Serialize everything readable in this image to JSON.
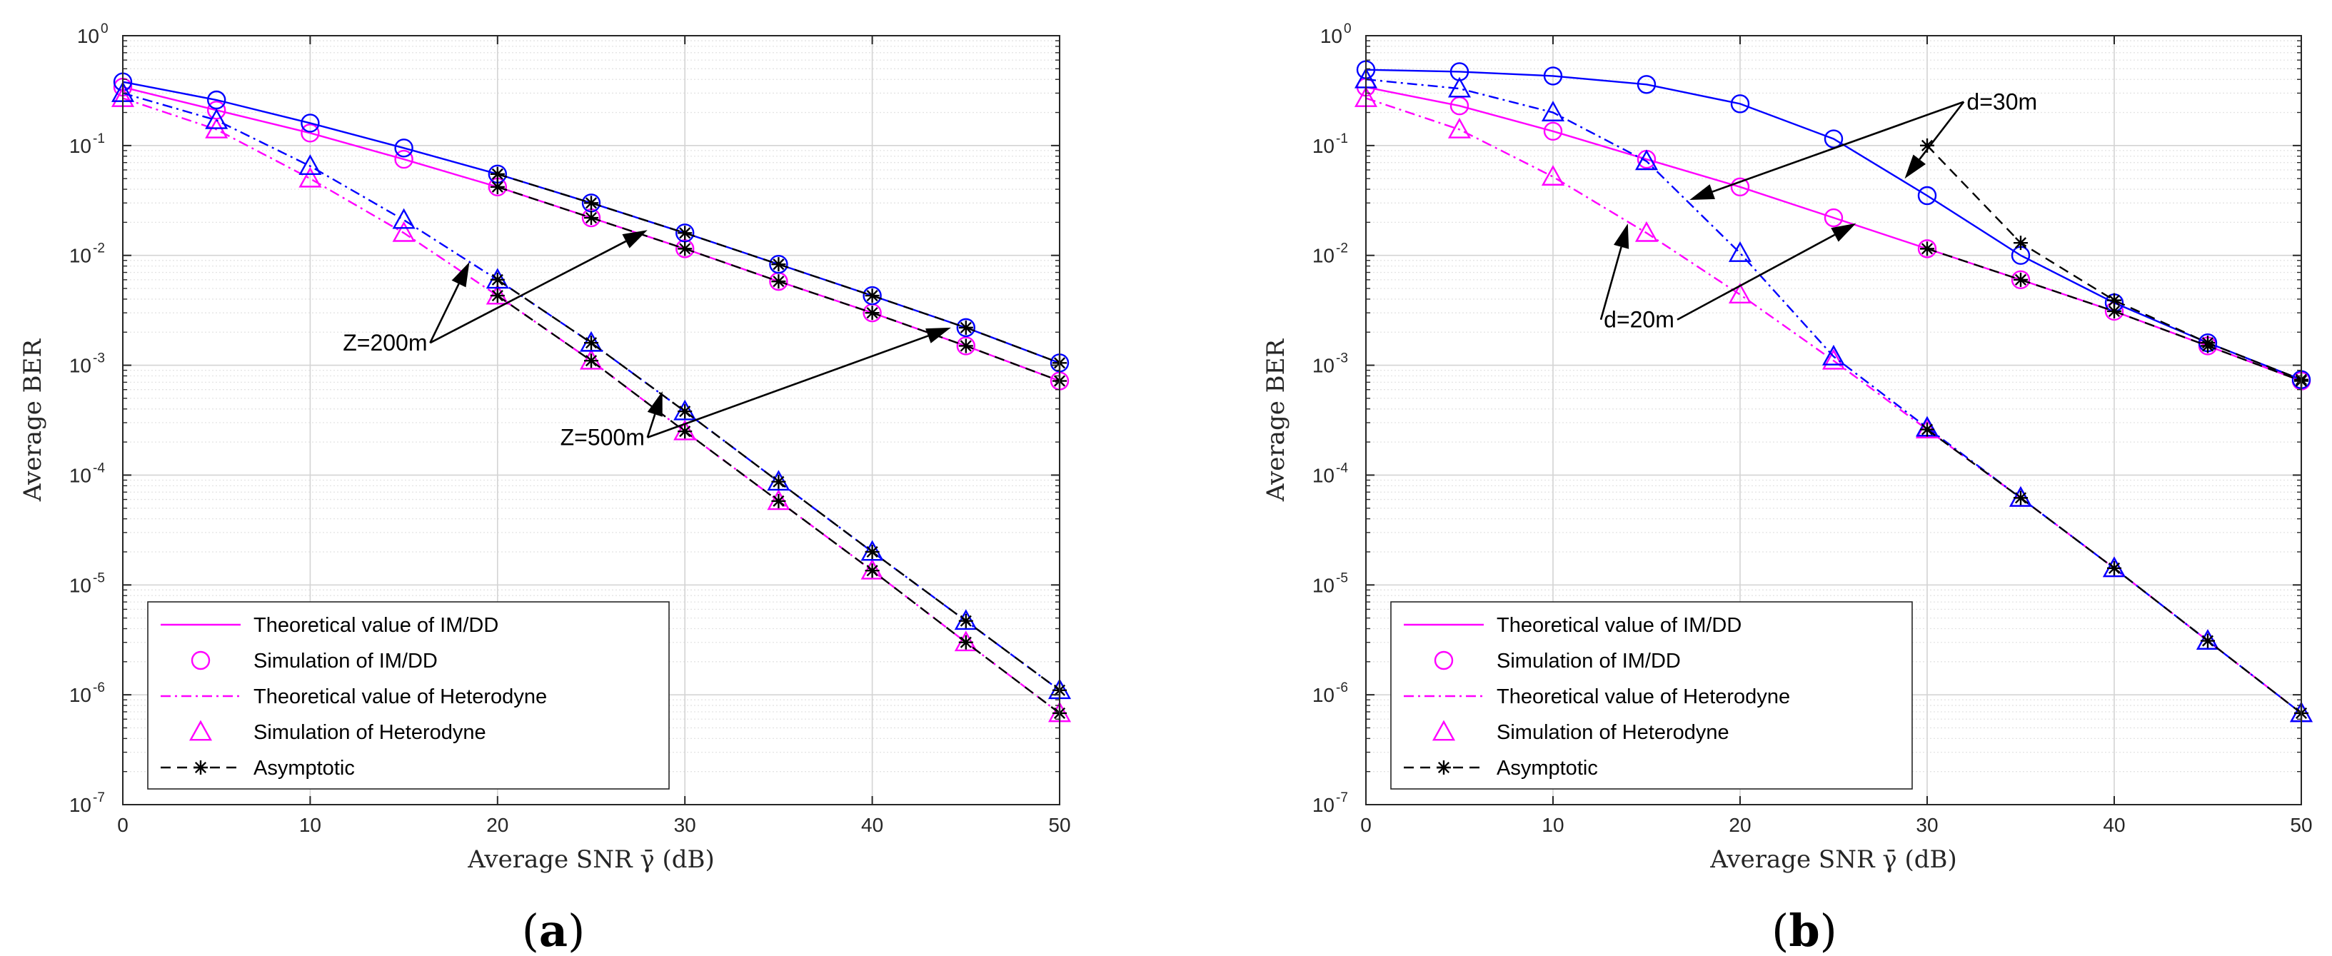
{
  "figure": {
    "captions": [
      {
        "open": "(",
        "letter": "a",
        "close": ")"
      },
      {
        "open": "(",
        "letter": "b",
        "close": ")"
      }
    ]
  },
  "chart_data": [
    {
      "type": "line",
      "id": "a",
      "title": "",
      "xlabel": "Average SNR γ̄ (dB)",
      "ylabel": "Average BER",
      "xlim": [
        0,
        50
      ],
      "ylim_log10": [
        -7,
        0
      ],
      "yscale": "log",
      "grid": true,
      "xticks": [
        0,
        10,
        20,
        30,
        40,
        50
      ],
      "yticks_base": "10",
      "yticks_exp": [
        "0",
        "-1",
        "-2",
        "-3",
        "-4",
        "-5",
        "-6",
        "-7"
      ],
      "legend": {
        "placement": "bottom-left",
        "entries": [
          {
            "label": "Theoretical value of IM/DD",
            "style": "solid",
            "marker": "none",
            "color": "#ff00ff"
          },
          {
            "label": "Simulation of IM/DD",
            "style": "none",
            "marker": "circle",
            "color": "#ff00ff"
          },
          {
            "label": "Theoretical value of Heterodyne",
            "style": "dashdot",
            "marker": "none",
            "color": "#ff00ff"
          },
          {
            "label": "Simulation of Heterodyne",
            "style": "none",
            "marker": "triangle",
            "color": "#ff00ff"
          },
          {
            "label": "Asymptotic",
            "style": "dashed",
            "marker": "star",
            "color": "#000000"
          }
        ]
      },
      "series": [
        {
          "name": "IM/DD theory Z=200m",
          "style": "solid",
          "color": "#ff00ff",
          "marker": "none",
          "x": [
            0,
            5,
            10,
            15,
            20,
            25,
            30,
            35,
            40,
            45,
            50
          ],
          "y": [
            0.34,
            0.21,
            0.13,
            0.075,
            0.042,
            0.022,
            0.0115,
            0.0058,
            0.003,
            0.0015,
            0.00072
          ]
        },
        {
          "name": "IM/DD simulation Z=200m",
          "style": "none",
          "color": "#ff00ff",
          "marker": "circle",
          "x": [
            0,
            5,
            10,
            15,
            20,
            25,
            30,
            35,
            40,
            45,
            50
          ],
          "y": [
            0.34,
            0.21,
            0.13,
            0.075,
            0.042,
            0.022,
            0.0115,
            0.0058,
            0.003,
            0.0015,
            0.00072
          ]
        },
        {
          "name": "IM/DD theory Z=500m",
          "style": "solid",
          "color": "#0000ff",
          "marker": "none",
          "x": [
            0,
            5,
            10,
            15,
            20,
            25,
            30,
            35,
            40,
            45,
            50
          ],
          "y": [
            0.38,
            0.26,
            0.16,
            0.095,
            0.055,
            0.03,
            0.016,
            0.0083,
            0.0043,
            0.0022,
            0.00105
          ]
        },
        {
          "name": "IM/DD simulation Z=500m",
          "style": "none",
          "color": "#0000ff",
          "marker": "circle",
          "x": [
            0,
            5,
            10,
            15,
            20,
            25,
            30,
            35,
            40,
            45,
            50
          ],
          "y": [
            0.38,
            0.26,
            0.16,
            0.095,
            0.055,
            0.03,
            0.016,
            0.0083,
            0.0043,
            0.0022,
            0.00105
          ]
        },
        {
          "name": "Heterodyne theory Z=200m",
          "style": "dashdot",
          "color": "#ff00ff",
          "marker": "none",
          "x": [
            0,
            5,
            10,
            15,
            20,
            25,
            30,
            35,
            40,
            45,
            50
          ],
          "y": [
            0.27,
            0.14,
            0.05,
            0.016,
            0.0043,
            0.0011,
            0.00025,
            5.8e-05,
            1.35e-05,
            3e-06,
            6.8e-07
          ]
        },
        {
          "name": "Heterodyne simulation Z=200m",
          "style": "none",
          "color": "#ff00ff",
          "marker": "triangle",
          "x": [
            0,
            5,
            10,
            15,
            20,
            25,
            30,
            35,
            40,
            45,
            50
          ],
          "y": [
            0.27,
            0.14,
            0.05,
            0.016,
            0.0043,
            0.0011,
            0.00025,
            5.8e-05,
            1.35e-05,
            3e-06,
            6.8e-07
          ]
        },
        {
          "name": "Heterodyne theory Z=500m",
          "style": "dashdot",
          "color": "#0000ff",
          "marker": "none",
          "x": [
            0,
            5,
            10,
            15,
            20,
            25,
            30,
            35,
            40,
            45,
            50
          ],
          "y": [
            0.3,
            0.17,
            0.065,
            0.021,
            0.006,
            0.0016,
            0.00038,
            8.7e-05,
            2e-05,
            4.7e-06,
            1.1e-06
          ]
        },
        {
          "name": "Heterodyne simulation Z=500m",
          "style": "none",
          "color": "#0000ff",
          "marker": "triangle",
          "x": [
            0,
            5,
            10,
            15,
            20,
            25,
            30,
            35,
            40,
            45,
            50
          ],
          "y": [
            0.3,
            0.17,
            0.065,
            0.021,
            0.006,
            0.0016,
            0.00038,
            8.7e-05,
            2e-05,
            4.7e-06,
            1.1e-06
          ]
        },
        {
          "name": "Asymptotic IM/DD Z=200m",
          "style": "dashed",
          "color": "#000000",
          "marker": "star",
          "x": [
            20,
            25,
            30,
            35,
            40,
            45,
            50
          ],
          "y": [
            0.042,
            0.022,
            0.0115,
            0.0058,
            0.003,
            0.0015,
            0.00072
          ]
        },
        {
          "name": "Asymptotic IM/DD Z=500m",
          "style": "dashed",
          "color": "#000000",
          "marker": "star",
          "x": [
            20,
            25,
            30,
            35,
            40,
            45,
            50
          ],
          "y": [
            0.055,
            0.03,
            0.016,
            0.0083,
            0.0043,
            0.0022,
            0.00105
          ]
        },
        {
          "name": "Asymptotic Heterodyne Z=200m",
          "style": "dashed",
          "color": "#000000",
          "marker": "star",
          "x": [
            20,
            25,
            30,
            35,
            40,
            45,
            50
          ],
          "y": [
            0.0043,
            0.0011,
            0.00025,
            5.8e-05,
            1.35e-05,
            3e-06,
            6.8e-07
          ]
        },
        {
          "name": "Asymptotic Heterodyne Z=500m",
          "style": "dashed",
          "color": "#000000",
          "marker": "star",
          "x": [
            20,
            25,
            30,
            35,
            40,
            45,
            50
          ],
          "y": [
            0.006,
            0.0016,
            0.00038,
            8.7e-05,
            2e-05,
            4.7e-06,
            1.1e-06
          ]
        }
      ],
      "annotations": [
        {
          "text": "Z=200m",
          "at": [
            14,
            0.0016
          ],
          "arrows_to": [
            [
              18.5,
              0.0087
            ],
            [
              28,
              0.017
            ]
          ]
        },
        {
          "text": "Z=500m",
          "at": [
            25.6,
            0.00022
          ],
          "arrows_to": [
            [
              28.8,
              0.00058
            ],
            [
              44.2,
              0.0022
            ]
          ]
        }
      ]
    },
    {
      "type": "line",
      "id": "b",
      "title": "",
      "xlabel": "Average SNR γ̄ (dB)",
      "ylabel": "Average BER",
      "xlim": [
        0,
        50
      ],
      "ylim_log10": [
        -7,
        0
      ],
      "yscale": "log",
      "grid": true,
      "xticks": [
        0,
        10,
        20,
        30,
        40,
        50
      ],
      "yticks_base": "10",
      "yticks_exp": [
        "0",
        "-1",
        "-2",
        "-3",
        "-4",
        "-5",
        "-6",
        "-7"
      ],
      "legend": {
        "placement": "bottom-left",
        "entries": [
          {
            "label": "Theoretical value of IM/DD",
            "style": "solid",
            "marker": "none",
            "color": "#ff00ff"
          },
          {
            "label": "Simulation of IM/DD",
            "style": "none",
            "marker": "circle",
            "color": "#ff00ff"
          },
          {
            "label": "Theoretical value of Heterodyne",
            "style": "dashdot",
            "marker": "none",
            "color": "#ff00ff"
          },
          {
            "label": "Simulation of Heterodyne",
            "style": "none",
            "marker": "triangle",
            "color": "#ff00ff"
          },
          {
            "label": "Asymptotic",
            "style": "dashed",
            "marker": "star",
            "color": "#000000"
          }
        ]
      },
      "series": [
        {
          "name": "IM/DD theory d=20m",
          "style": "solid",
          "color": "#ff00ff",
          "marker": "none",
          "x": [
            0,
            5,
            10,
            15,
            20,
            25,
            30,
            35,
            40,
            45,
            50
          ],
          "y": [
            0.34,
            0.23,
            0.135,
            0.075,
            0.042,
            0.022,
            0.0115,
            0.006,
            0.0031,
            0.0015,
            0.00072
          ]
        },
        {
          "name": "IM/DD simulation d=20m",
          "style": "none",
          "color": "#ff00ff",
          "marker": "circle",
          "x": [
            0,
            5,
            10,
            15,
            20,
            25,
            30,
            35,
            40,
            45,
            50
          ],
          "y": [
            0.34,
            0.23,
            0.135,
            0.075,
            0.042,
            0.022,
            0.0115,
            0.006,
            0.0031,
            0.0015,
            0.00072
          ]
        },
        {
          "name": "IM/DD theory d=30m",
          "style": "solid",
          "color": "#0000ff",
          "marker": "none",
          "x": [
            0,
            5,
            10,
            15,
            20,
            25,
            30,
            35,
            40,
            45,
            50
          ],
          "y": [
            0.49,
            0.47,
            0.43,
            0.36,
            0.24,
            0.115,
            0.035,
            0.01,
            0.0037,
            0.0016,
            0.00074
          ]
        },
        {
          "name": "IM/DD simulation d=30m",
          "style": "none",
          "color": "#0000ff",
          "marker": "circle",
          "x": [
            0,
            5,
            10,
            15,
            20,
            25,
            30,
            35,
            40,
            45,
            50
          ],
          "y": [
            0.49,
            0.47,
            0.43,
            0.36,
            0.24,
            0.115,
            0.035,
            0.01,
            0.0037,
            0.0016,
            0.00074
          ]
        },
        {
          "name": "Heterodyne theory d=20m",
          "style": "dashdot",
          "color": "#ff00ff",
          "marker": "none",
          "x": [
            0,
            5,
            10,
            15,
            20,
            25,
            30,
            35,
            40,
            45,
            50
          ],
          "y": [
            0.27,
            0.14,
            0.052,
            0.016,
            0.0044,
            0.0011,
            0.00026,
            6.2e-05,
            1.42e-05,
            3.1e-06,
            6.8e-07
          ]
        },
        {
          "name": "Heterodyne simulation d=20m",
          "style": "none",
          "color": "#ff00ff",
          "marker": "triangle",
          "x": [
            0,
            5,
            10,
            15,
            20,
            25,
            30,
            35,
            40,
            45,
            50
          ],
          "y": [
            0.27,
            0.14,
            0.052,
            0.016,
            0.0044,
            0.0011,
            0.00026,
            6.2e-05,
            1.42e-05,
            3.1e-06,
            6.8e-07
          ]
        },
        {
          "name": "Heterodyne theory d=30m",
          "style": "dashdot",
          "color": "#0000ff",
          "marker": "none",
          "x": [
            0,
            5,
            10,
            15,
            20,
            25,
            30,
            35,
            40,
            45,
            50
          ],
          "y": [
            0.4,
            0.33,
            0.2,
            0.072,
            0.0105,
            0.0012,
            0.00027,
            6.2e-05,
            1.42e-05,
            3.1e-06,
            6.8e-07
          ]
        },
        {
          "name": "Heterodyne simulation d=30m",
          "style": "none",
          "color": "#0000ff",
          "marker": "triangle",
          "x": [
            0,
            5,
            10,
            15,
            20,
            25,
            30,
            35,
            40,
            45,
            50
          ],
          "y": [
            0.4,
            0.33,
            0.2,
            0.072,
            0.0105,
            0.0012,
            0.00027,
            6.2e-05,
            1.42e-05,
            3.1e-06,
            6.8e-07
          ]
        },
        {
          "name": "Asymptotic IM/DD d=20m",
          "style": "dashed",
          "color": "#000000",
          "marker": "star",
          "x": [
            30,
            35,
            40,
            45,
            50
          ],
          "y": [
            0.0115,
            0.006,
            0.0031,
            0.0015,
            0.00072
          ]
        },
        {
          "name": "Asymptotic IM/DD d=30m",
          "style": "dashed",
          "color": "#000000",
          "marker": "star",
          "x": [
            30,
            35,
            40,
            45,
            50
          ],
          "y": [
            0.1,
            0.013,
            0.0039,
            0.0016,
            0.00074
          ]
        },
        {
          "name": "Asymptotic Heterodyne",
          "style": "dashed",
          "color": "#000000",
          "marker": "star",
          "x": [
            30,
            35,
            40,
            45,
            50
          ],
          "y": [
            0.00026,
            6.2e-05,
            1.42e-05,
            3.1e-06,
            6.8e-07
          ]
        }
      ],
      "annotations": [
        {
          "text": "d=30m",
          "at": [
            34,
            0.25
          ],
          "arrows_to": [
            [
              17.3,
              0.032
            ],
            [
              28.8,
              0.05
            ]
          ]
        },
        {
          "text": "d=20m",
          "at": [
            14.6,
            0.0026
          ],
          "arrows_to": [
            [
              14,
              0.0195
            ],
            [
              26.2,
              0.0196
            ]
          ]
        }
      ]
    }
  ]
}
